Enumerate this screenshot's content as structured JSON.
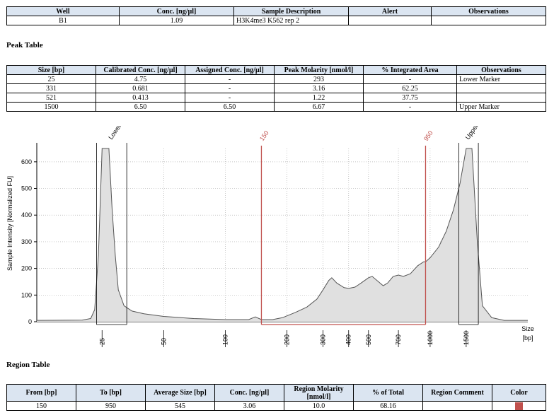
{
  "well_table": {
    "headers": [
      "Well",
      "Conc. [ng/µl]",
      "Sample Description",
      "Alert",
      "Observations"
    ],
    "row": [
      "B1",
      "1.09",
      "H3K4me3 K562 rep 2",
      "",
      ""
    ]
  },
  "peak_table": {
    "title": "Peak Table",
    "headers": [
      "Size [bp]",
      "Calibrated Conc. [ng/µl]",
      "Assigned Conc. [ng/µl]",
      "Peak Molarity [nmol/l]",
      "% Integrated Area",
      "Observations"
    ],
    "rows": [
      [
        "25",
        "4.75",
        "-",
        "293",
        "-",
        "Lower Marker"
      ],
      [
        "331",
        "0.681",
        "-",
        "3.16",
        "62.25",
        ""
      ],
      [
        "521",
        "0.413",
        "-",
        "1.22",
        "37.75",
        ""
      ],
      [
        "1500",
        "6.50",
        "6.50",
        "6.67",
        "-",
        "Upper Marker"
      ]
    ]
  },
  "region_table": {
    "title": "Region Table",
    "headers": [
      "From [bp]",
      "To [bp]",
      "Average Size [bp]",
      "Conc. [ng/µl]",
      "Region Molarity [nmol/l]",
      "% of Total",
      "Region Comment",
      "Color"
    ],
    "row": [
      "150",
      "950",
      "545",
      "3.06",
      "10.0",
      "68.16",
      ""
    ],
    "color": "#c0504d"
  },
  "chart_data": {
    "type": "area",
    "ylabel": "Sample Intensity [Normalized FU]",
    "xlabel": "Size [bp]",
    "xlabel_lines": [
      "Size",
      "[bp]"
    ],
    "ylim": [
      0,
      650
    ],
    "yticks": [
      0,
      100,
      200,
      300,
      400,
      500,
      600
    ],
    "x_scale": "log",
    "xlim": [
      12,
      3000
    ],
    "xticks": [
      25,
      50,
      100,
      200,
      300,
      400,
      500,
      700,
      1000,
      1500
    ],
    "grid": true,
    "fill_color": "#e0e0e0",
    "line_color": "#555555",
    "x": [
      12,
      20,
      22,
      23,
      24,
      25,
      27,
      28,
      29,
      30,
      32,
      35,
      40,
      50,
      70,
      100,
      130,
      140,
      150,
      170,
      190,
      200,
      220,
      250,
      280,
      300,
      320,
      331,
      350,
      380,
      400,
      430,
      460,
      500,
      521,
      560,
      590,
      620,
      660,
      700,
      740,
      800,
      870,
      930,
      950,
      1000,
      1100,
      1200,
      1300,
      1400,
      1500,
      1600,
      1700,
      1800,
      2000,
      2300,
      3000
    ],
    "y": [
      5,
      6,
      12,
      45,
      250,
      650,
      650,
      420,
      250,
      120,
      60,
      40,
      30,
      20,
      12,
      8,
      8,
      18,
      8,
      8,
      15,
      22,
      35,
      55,
      85,
      120,
      155,
      165,
      145,
      128,
      125,
      130,
      145,
      165,
      170,
      150,
      135,
      145,
      170,
      175,
      170,
      180,
      210,
      225,
      225,
      240,
      280,
      340,
      420,
      520,
      650,
      650,
      300,
      60,
      15,
      5,
      5
    ],
    "regions": [
      {
        "from": 150,
        "to": 950,
        "from_label": "150",
        "to_label": "950",
        "color": "#c0504d"
      }
    ],
    "markers": [
      {
        "label": "Lower",
        "from": 23.5,
        "to": 33
      },
      {
        "label": "Upper",
        "from": 1380,
        "to": 1720
      }
    ]
  }
}
